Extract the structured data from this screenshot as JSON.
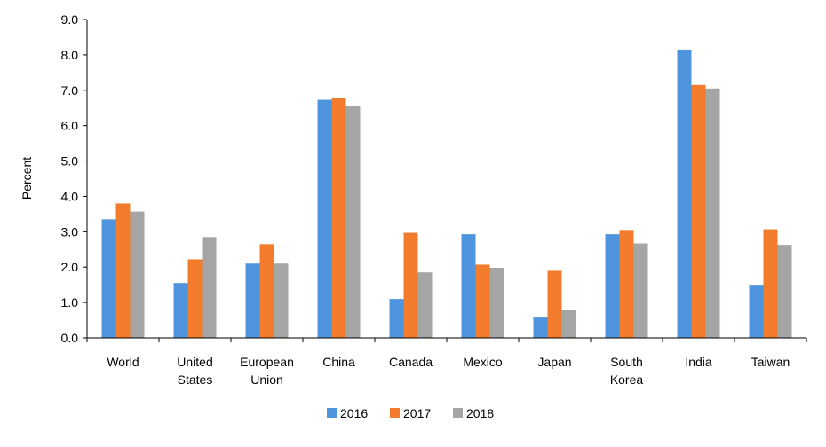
{
  "chart_data": {
    "type": "bar",
    "title": "",
    "xlabel": "",
    "ylabel": "Percent",
    "ylim": [
      0,
      9
    ],
    "yticks": [
      "0.0",
      "1.0",
      "2.0",
      "3.0",
      "4.0",
      "5.0",
      "6.0",
      "7.0",
      "8.0",
      "9.0"
    ],
    "grid": false,
    "legend_position": "bottom",
    "categories": [
      [
        "World"
      ],
      [
        "United",
        "States"
      ],
      [
        "European",
        "Union"
      ],
      [
        "China"
      ],
      [
        "Canada"
      ],
      [
        "Mexico"
      ],
      [
        "Japan"
      ],
      [
        "South",
        "Korea"
      ],
      [
        "India"
      ],
      [
        "Taiwan"
      ]
    ],
    "series": [
      {
        "name": "2016",
        "color": "#4f95dd",
        "values": [
          3.35,
          1.55,
          2.1,
          6.73,
          1.1,
          2.93,
          0.6,
          2.93,
          8.15,
          1.5
        ]
      },
      {
        "name": "2017",
        "color": "#f27b2c",
        "values": [
          3.8,
          2.22,
          2.65,
          6.77,
          2.97,
          2.07,
          1.92,
          3.05,
          7.15,
          3.07
        ]
      },
      {
        "name": "2018",
        "color": "#a5a5a5",
        "values": [
          3.57,
          2.85,
          2.1,
          6.55,
          1.85,
          1.98,
          0.78,
          2.67,
          7.05,
          2.63
        ]
      }
    ]
  }
}
